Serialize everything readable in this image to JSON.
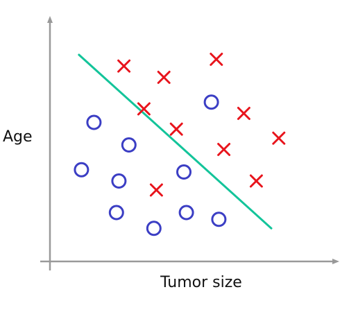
{
  "chart_data": {
    "type": "scatter",
    "title": "",
    "xlabel": "Tumor size",
    "ylabel": "Age",
    "xlim": [
      0,
      10
    ],
    "ylim": [
      0,
      10
    ],
    "grid": false,
    "legend": "none",
    "series": [
      {
        "name": "cross",
        "marker": "x",
        "color": "#e8141c",
        "points": [
          {
            "x": 2.6,
            "y": 8.3
          },
          {
            "x": 4.2,
            "y": 7.8
          },
          {
            "x": 6.3,
            "y": 8.6
          },
          {
            "x": 3.4,
            "y": 6.4
          },
          {
            "x": 4.7,
            "y": 5.5
          },
          {
            "x": 7.4,
            "y": 6.2
          },
          {
            "x": 6.6,
            "y": 4.6
          },
          {
            "x": 8.8,
            "y": 5.1
          },
          {
            "x": 7.9,
            "y": 3.2
          },
          {
            "x": 3.9,
            "y": 2.8
          }
        ]
      },
      {
        "name": "circle",
        "marker": "o",
        "color": "#3b3ec4",
        "points": [
          {
            "x": 6.1,
            "y": 6.7
          },
          {
            "x": 1.4,
            "y": 5.8
          },
          {
            "x": 2.8,
            "y": 4.8
          },
          {
            "x": 0.9,
            "y": 3.7
          },
          {
            "x": 2.4,
            "y": 3.2
          },
          {
            "x": 5.0,
            "y": 3.6
          },
          {
            "x": 2.3,
            "y": 1.8
          },
          {
            "x": 3.8,
            "y": 1.1
          },
          {
            "x": 5.1,
            "y": 1.8
          },
          {
            "x": 6.4,
            "y": 1.5
          }
        ]
      }
    ],
    "decision_boundary": {
      "color": "#13c49a",
      "points": [
        {
          "x": 0.8,
          "y": 8.8
        },
        {
          "x": 8.5,
          "y": 1.1
        }
      ]
    }
  }
}
